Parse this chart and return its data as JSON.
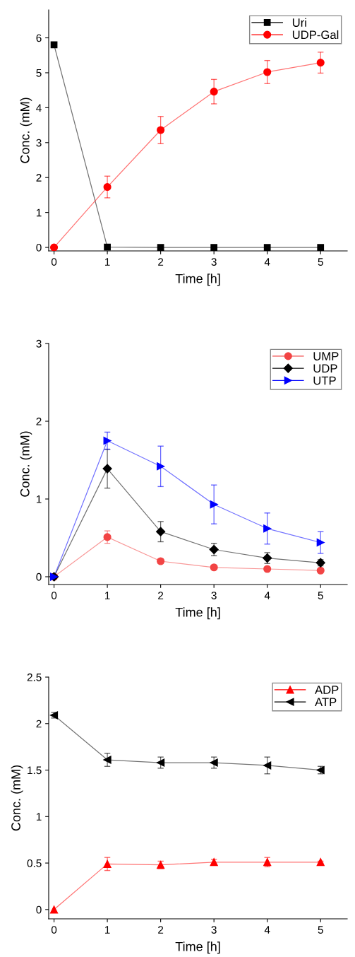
{
  "chart_data": [
    {
      "type": "line",
      "xlabel": "Time [h]",
      "ylabel": "Conc. (mM)",
      "x": [
        0,
        1,
        2,
        3,
        4,
        5
      ],
      "xlim": [
        -0.1,
        5.5
      ],
      "xticks": [
        0,
        1,
        2,
        3,
        4,
        5
      ],
      "ylim": [
        -0.1,
        6.8
      ],
      "yticks": [
        0,
        1,
        2,
        3,
        4,
        5,
        6
      ],
      "grid": false,
      "legend": "top right",
      "series": [
        {
          "name": "Uri",
          "color": "#000000",
          "marker": "square",
          "values": [
            5.8,
            0.01,
            0,
            0,
            0,
            0
          ]
        },
        {
          "name": "UDP-Gal",
          "color": "#ff0000",
          "marker": "circle",
          "values": [
            0,
            1.73,
            3.36,
            4.46,
            5.02,
            5.29
          ],
          "errors": [
            null,
            0.31,
            0.39,
            0.35,
            0.33,
            0.3
          ]
        }
      ]
    },
    {
      "type": "line",
      "xlabel": "Time [h]",
      "ylabel": "Conc. (mM)",
      "x": [
        0,
        1,
        2,
        3,
        4,
        5
      ],
      "xlim": [
        -0.1,
        5.5
      ],
      "xticks": [
        0,
        1,
        2,
        3,
        4,
        5
      ],
      "ylim": [
        -0.1,
        3
      ],
      "yticks": [
        0,
        1,
        2,
        3
      ],
      "grid": false,
      "legend": "top right",
      "series": [
        {
          "name": "UMP",
          "color": "#f24444",
          "marker": "circle",
          "values": [
            0,
            0.51,
            0.2,
            0.12,
            0.1,
            0.08
          ],
          "errors": [
            null,
            0.08,
            0.03,
            0.01,
            0.01,
            0.01
          ]
        },
        {
          "name": "UDP",
          "color": "#000000",
          "marker": "diamond",
          "values": [
            0,
            1.39,
            0.58,
            0.35,
            0.24,
            0.18
          ],
          "errors": [
            null,
            0.25,
            0.13,
            0.08,
            0.07,
            0.04
          ]
        },
        {
          "name": "UTP",
          "color": "#0000ff",
          "marker": "triangle-right",
          "values": [
            0,
            1.75,
            1.42,
            0.93,
            0.62,
            0.44
          ],
          "errors": [
            null,
            0.11,
            0.26,
            0.25,
            0.2,
            0.14
          ]
        }
      ]
    },
    {
      "type": "line",
      "xlabel": "Time [h]",
      "ylabel": "Conc. (mM)",
      "x": [
        0,
        1,
        2,
        3,
        4,
        5
      ],
      "xlim": [
        -0.1,
        5.5
      ],
      "xticks": [
        0,
        1,
        2,
        3,
        4,
        5
      ],
      "ylim": [
        -0.1,
        2.5
      ],
      "yticks": [
        0,
        0.5,
        1,
        1.5,
        2,
        2.5
      ],
      "grid": false,
      "legend": "top right",
      "series": [
        {
          "name": "ADP",
          "color": "#ff0000",
          "marker": "triangle",
          "values": [
            0,
            0.49,
            0.48,
            0.51,
            0.51,
            0.51
          ],
          "errors": [
            null,
            0.07,
            0.04,
            0.03,
            0.05,
            0.01
          ]
        },
        {
          "name": "ATP",
          "color": "#000000",
          "marker": "triangle-left",
          "values": [
            2.09,
            1.61,
            1.58,
            1.58,
            1.55,
            1.5
          ],
          "errors": [
            0.03,
            0.07,
            0.06,
            0.06,
            0.09,
            0.04
          ]
        }
      ]
    }
  ]
}
